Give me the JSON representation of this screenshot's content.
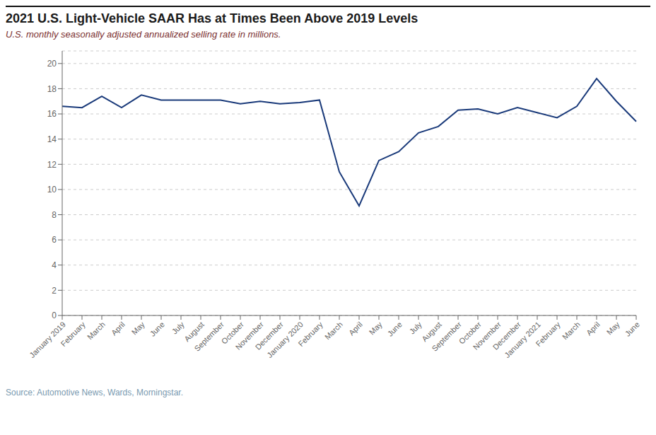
{
  "chart_data": {
    "type": "line",
    "title": "2021 U.S. Light-Vehicle SAAR Has at Times Been Above 2019 Levels",
    "subtitle": "U.S. monthly seasonally adjusted annualized selling rate in millions.",
    "annotations": [
      "Source: Automotive News, Wards, Morningstar."
    ],
    "categories": [
      "January 2019",
      "February",
      "March",
      "April",
      "May",
      "June",
      "July",
      "August",
      "September",
      "October",
      "November",
      "December",
      "January 2020",
      "February",
      "March",
      "April",
      "May",
      "June",
      "July",
      "August",
      "September",
      "October",
      "November",
      "December",
      "January 2021",
      "February",
      "March",
      "April",
      "May",
      "June"
    ],
    "values": [
      16.6,
      16.5,
      17.4,
      16.5,
      17.5,
      17.1,
      17.1,
      17.1,
      17.1,
      16.8,
      17.0,
      16.8,
      16.9,
      17.1,
      11.4,
      8.7,
      12.3,
      13.0,
      14.5,
      15.0,
      16.3,
      16.4,
      16.0,
      16.5,
      16.1,
      15.7,
      16.6,
      18.8,
      17.0,
      15.4
    ],
    "color": "#1a3a7a",
    "ylim": [
      0,
      21
    ],
    "yticks": [
      0,
      2,
      4,
      6,
      8,
      10,
      12,
      14,
      16,
      18,
      20
    ],
    "grid": true
  }
}
